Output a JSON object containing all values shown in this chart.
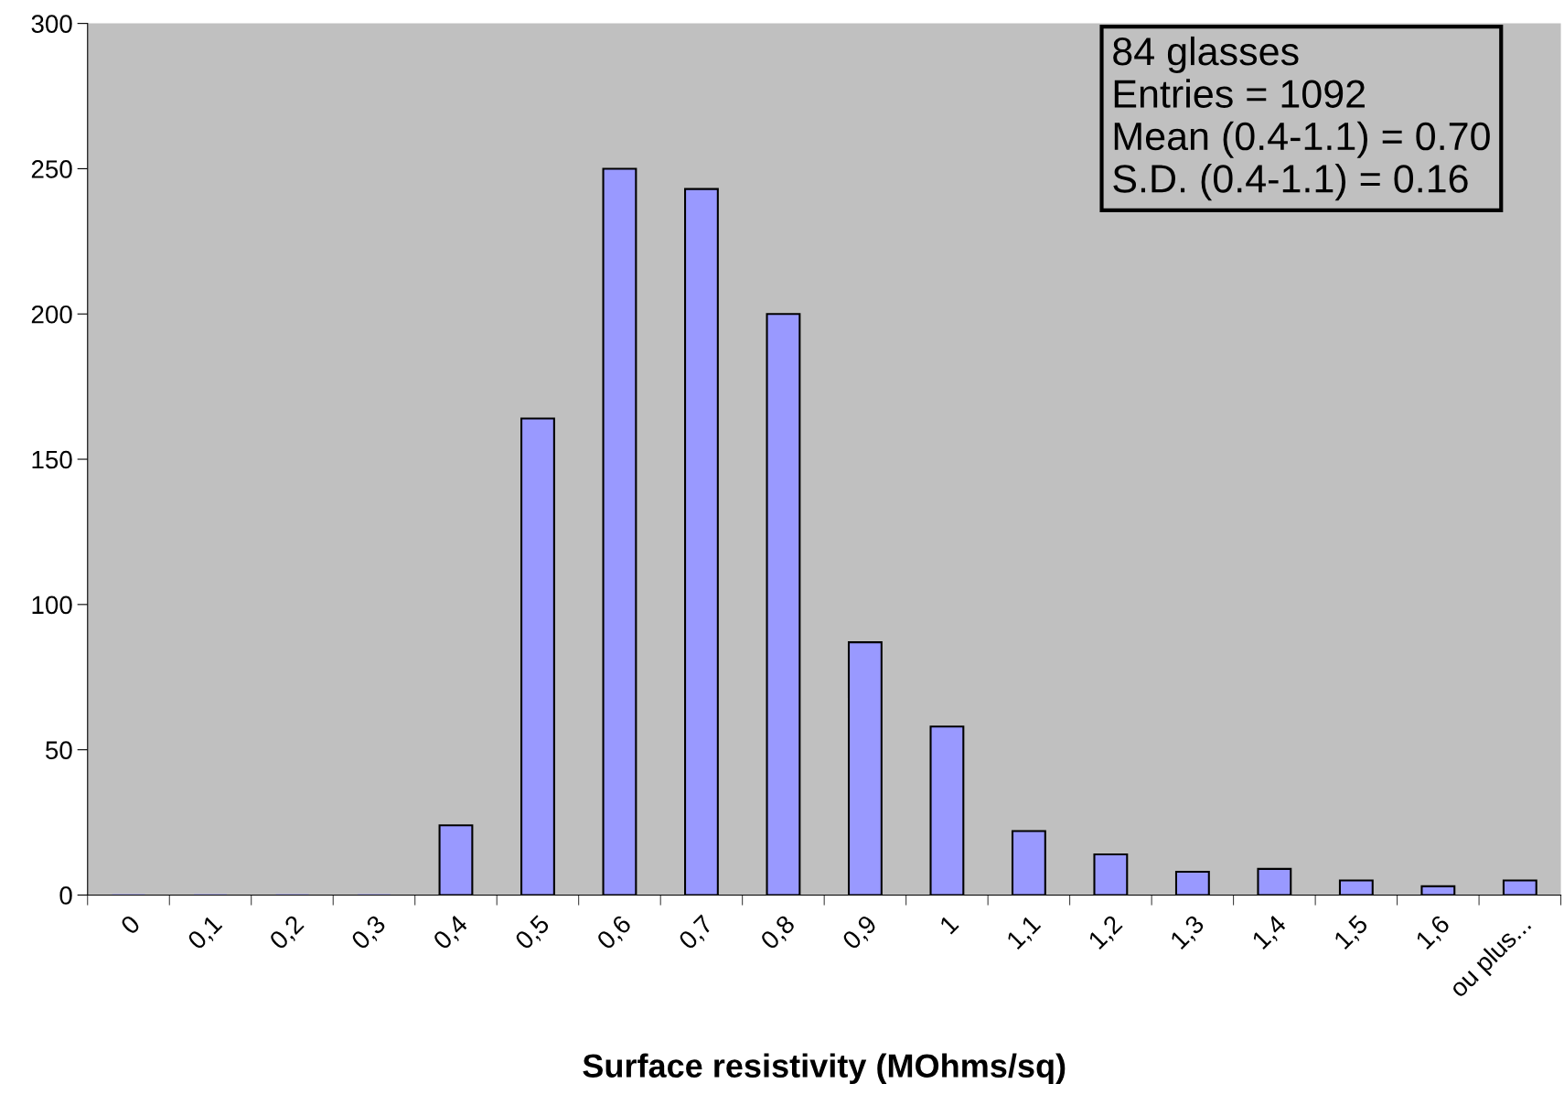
{
  "chart_data": {
    "type": "bar",
    "xlabel": "Surface resistivity (MOhms/sq)",
    "categories": [
      "0",
      "0,1",
      "0,2",
      "0,3",
      "0,4",
      "0,5",
      "0,6",
      "0,7",
      "0,8",
      "0,9",
      "1",
      "1,1",
      "1,2",
      "1,3",
      "1,4",
      "1,5",
      "1,6",
      "ou plus..."
    ],
    "values": [
      0,
      0,
      0,
      0,
      24,
      164,
      250,
      243,
      200,
      87,
      58,
      22,
      14,
      8,
      9,
      5,
      3,
      5
    ],
    "color": "#9999ff",
    "ylim": [
      0,
      300
    ],
    "yticks": [
      0,
      50,
      100,
      150,
      200,
      250,
      300
    ],
    "grid": false,
    "legend": false,
    "annotations": [
      "84 glasses",
      "Entries = 1092",
      "Mean (0.4-1.1) = 0.70",
      "S.D. (0.4-1.1) = 0.16"
    ]
  }
}
